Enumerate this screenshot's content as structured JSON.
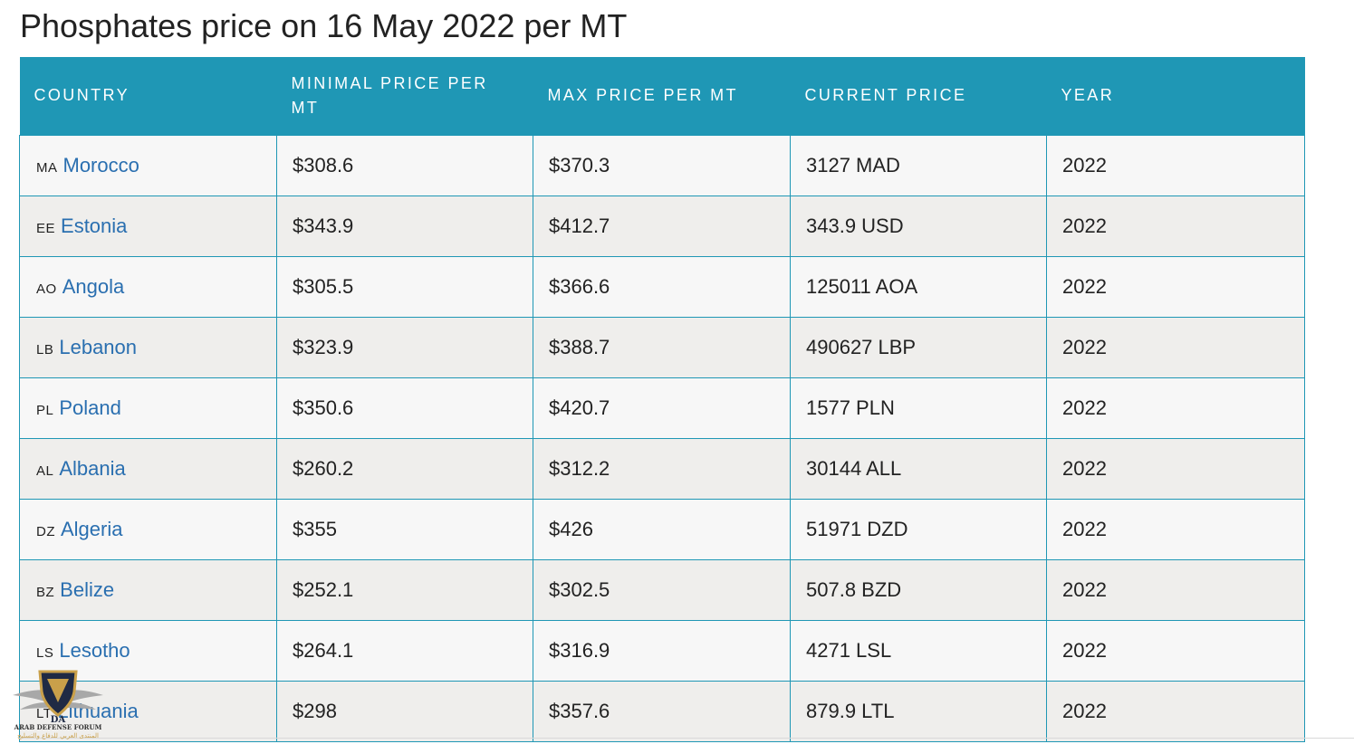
{
  "page": {
    "title": "Phosphates price on 16 May 2022 per MT"
  },
  "table": {
    "headers": {
      "country": "COUNTRY",
      "min_price": "MINIMAL PRICE PER MT",
      "max_price": "MAX PRICE PER MT",
      "current_price": "CURRENT PRICE",
      "year": "YEAR"
    },
    "rows": [
      {
        "code": "MA",
        "country": "Morocco",
        "min": "$308.6",
        "max": "$370.3",
        "current": "3127 MAD",
        "year": "2022"
      },
      {
        "code": "EE",
        "country": "Estonia",
        "min": "$343.9",
        "max": "$412.7",
        "current": "343.9 USD",
        "year": "2022"
      },
      {
        "code": "AO",
        "country": "Angola",
        "min": "$305.5",
        "max": "$366.6",
        "current": "125011 AOA",
        "year": "2022"
      },
      {
        "code": "LB",
        "country": "Lebanon",
        "min": "$323.9",
        "max": "$388.7",
        "current": "490627 LBP",
        "year": "2022"
      },
      {
        "code": "PL",
        "country": "Poland",
        "min": "$350.6",
        "max": "$420.7",
        "current": "1577 PLN",
        "year": "2022"
      },
      {
        "code": "AL",
        "country": "Albania",
        "min": "$260.2",
        "max": "$312.2",
        "current": "30144 ALL",
        "year": "2022"
      },
      {
        "code": "DZ",
        "country": "Algeria",
        "min": "$355",
        "max": "$426",
        "current": "51971 DZD",
        "year": "2022"
      },
      {
        "code": "BZ",
        "country": "Belize",
        "min": "$252.1",
        "max": "$302.5",
        "current": "507.8 BZD",
        "year": "2022"
      },
      {
        "code": "LS",
        "country": "Lesotho",
        "min": "$264.1",
        "max": "$316.9",
        "current": "4271 LSL",
        "year": "2022"
      },
      {
        "code": "LT",
        "country": "Lithuania",
        "min": "$298",
        "max": "$357.6",
        "current": "879.9 LTL",
        "year": "2022"
      }
    ]
  },
  "watermark": {
    "initials": "DA",
    "name_en": "ARAB DEFENSE FORUM",
    "name_ar": "المنتدى العربي للدفاع والتسليح"
  },
  "colors": {
    "header_bg": "#1f97b5",
    "border": "#1f97b5",
    "link": "#2a6fb0",
    "row_odd": "#f7f7f7",
    "row_even": "#efeeec"
  }
}
